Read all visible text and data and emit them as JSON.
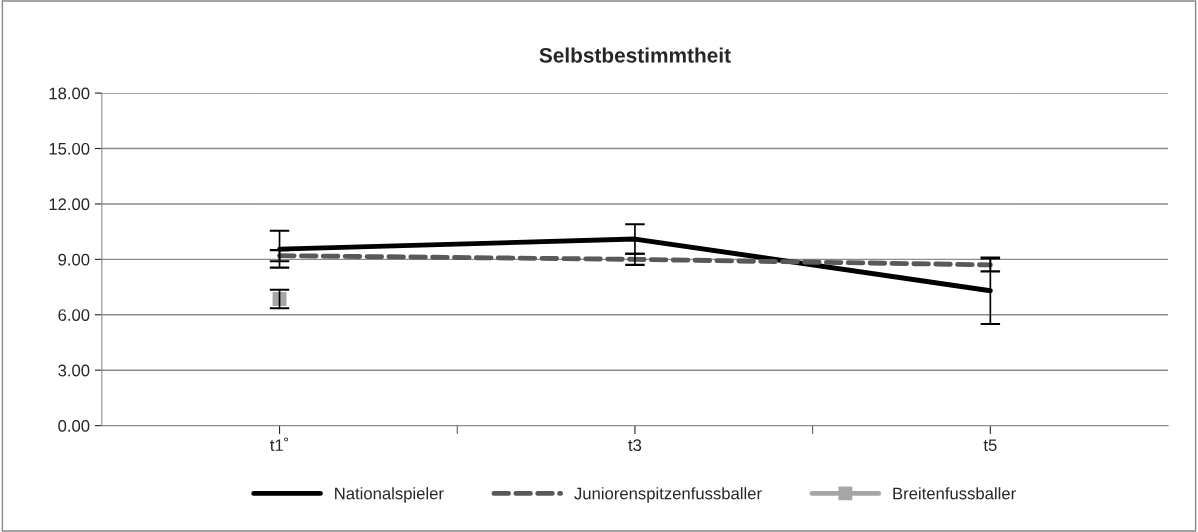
{
  "chart_data": {
    "type": "line",
    "title": "Selbstbestimmtheit",
    "categories": [
      "t1˚",
      "t3",
      "t5"
    ],
    "series": [
      {
        "name": "Nationalspieler",
        "color": "#000000",
        "values": [
          9.55,
          10.1,
          7.3
        ],
        "errors": [
          1.0,
          0.8,
          1.8
        ],
        "line_style": "solid",
        "marker": "none"
      },
      {
        "name": "Juniorenspitzenfussballer",
        "color": "#595959",
        "values": [
          9.2,
          9.0,
          8.7
        ],
        "errors": [
          0.3,
          0.3,
          0.35
        ],
        "line_style": "dashed",
        "marker": "none"
      },
      {
        "name": "Breitenfussballer",
        "color": "#a6a6a6",
        "values": [
          6.85,
          null,
          null
        ],
        "errors": [
          0.5,
          null,
          null
        ],
        "line_style": "solid",
        "marker": "square"
      }
    ],
    "ylim": [
      0,
      18
    ],
    "yticks": [
      {
        "value": 0,
        "label": "0.00"
      },
      {
        "value": 3,
        "label": "3.00"
      },
      {
        "value": 6,
        "label": "6.00"
      },
      {
        "value": 9,
        "label": "9.00"
      },
      {
        "value": 12,
        "label": "12.00"
      },
      {
        "value": 15,
        "label": "15.00"
      },
      {
        "value": 18,
        "label": "18.00"
      }
    ],
    "grid": "y",
    "legend": "bottom"
  }
}
